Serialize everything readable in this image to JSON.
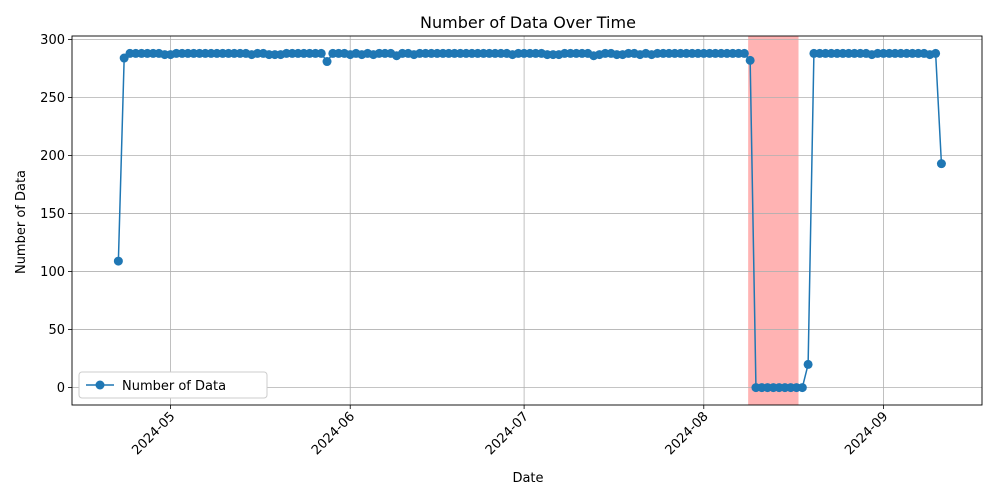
{
  "chart_data": {
    "type": "line",
    "title": "Number of Data Over Time",
    "xlabel": "Date",
    "ylabel": "Number of Data",
    "x_start_date": "2024-04-22",
    "x_step_days": 1,
    "xlim_dates": [
      "2024-04-14",
      "2024-09-18"
    ],
    "ylim": [
      -15,
      303
    ],
    "grid": true,
    "legend_position": "lower-left",
    "x_ticks": [
      {
        "date": "2024-05-01",
        "label": "2024-05"
      },
      {
        "date": "2024-06-01",
        "label": "2024-06"
      },
      {
        "date": "2024-07-01",
        "label": "2024-07"
      },
      {
        "date": "2024-08-01",
        "label": "2024-08"
      },
      {
        "date": "2024-09-01",
        "label": "2024-09"
      }
    ],
    "y_ticks": [
      0,
      50,
      100,
      150,
      200,
      250,
      300
    ],
    "highlight_span": {
      "start": "2024-08-09",
      "end": "2024-08-17",
      "color": "#ffb3b3"
    },
    "series": [
      {
        "name": "Number of Data",
        "color": "#1f77b4",
        "marker": "circle",
        "values": [
          109,
          284,
          288,
          288,
          288,
          288,
          288,
          288,
          287,
          287,
          288,
          288,
          288,
          288,
          288,
          288,
          288,
          288,
          288,
          288,
          288,
          288,
          288,
          287,
          288,
          288,
          287,
          287,
          287,
          288,
          288,
          288,
          288,
          288,
          288,
          288,
          281,
          288,
          288,
          288,
          287,
          288,
          287,
          288,
          287,
          288,
          288,
          288,
          286,
          288,
          288,
          287,
          288,
          288,
          288,
          288,
          288,
          288,
          288,
          288,
          288,
          288,
          288,
          288,
          288,
          288,
          288,
          288,
          287,
          288,
          288,
          288,
          288,
          288,
          287,
          287,
          287,
          288,
          288,
          288,
          288,
          288,
          286,
          287,
          288,
          288,
          287,
          287,
          288,
          288,
          287,
          288,
          287,
          288,
          288,
          288,
          288,
          288,
          288,
          288,
          288,
          288,
          288,
          288,
          288,
          288,
          288,
          288,
          288,
          282,
          0,
          0,
          0,
          0,
          0,
          0,
          0,
          0,
          0,
          20,
          288,
          288,
          288,
          288,
          288,
          288,
          288,
          288,
          288,
          288,
          287,
          288,
          288,
          288,
          288,
          288,
          288,
          288,
          288,
          288,
          287,
          288,
          193
        ]
      }
    ]
  }
}
